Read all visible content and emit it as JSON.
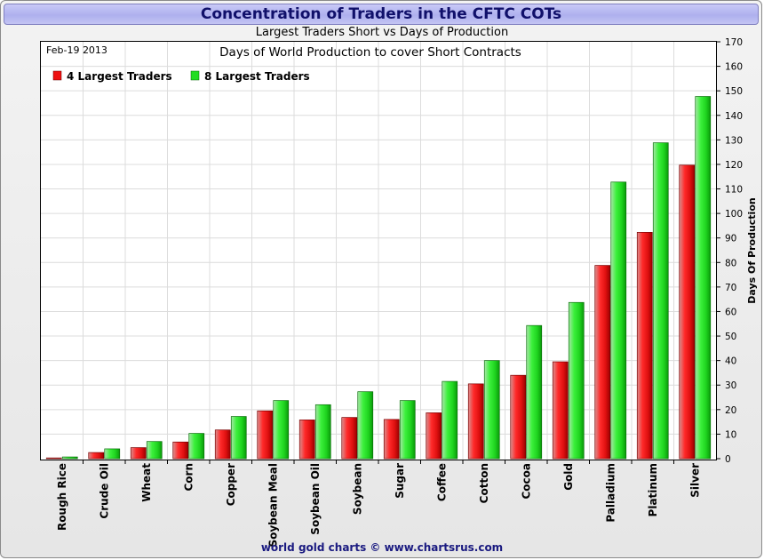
{
  "header": {
    "title": "Concentration of Traders in the CFTC COTs",
    "subtitle": "Largest Traders Short vs Days of Production"
  },
  "footer": {
    "text": "world gold charts © www.chartsrus.com"
  },
  "chart_data": {
    "type": "bar",
    "title": "Days of World Production to cover Short Contracts",
    "date_label": "Feb-19  2013",
    "ylabel": "Days Of Production",
    "xlabel": "",
    "ylim": [
      0,
      170
    ],
    "yticks": [
      0,
      10,
      20,
      30,
      40,
      50,
      60,
      70,
      80,
      90,
      100,
      110,
      120,
      130,
      140,
      150,
      160,
      170
    ],
    "grid": true,
    "legend_position": "top-left",
    "y_axis_side": "right",
    "categories": [
      "Rough Rice",
      "Crude Oil",
      "Wheat",
      "Corn",
      "Copper",
      "Soybean Meal",
      "Soybean Oil",
      "Soybean",
      "Sugar",
      "Coffee",
      "Cotton",
      "Cocoa",
      "Gold",
      "Palladium",
      "Platinum",
      "Silver"
    ],
    "series": [
      {
        "name": "4 Largest Traders",
        "color": "#ee1111",
        "values": [
          0.3,
          2.5,
          4.5,
          6.8,
          11.7,
          19.5,
          15.8,
          16.8,
          16.0,
          18.7,
          30.5,
          34.0,
          39.5,
          78.8,
          92.3,
          119.7
        ]
      },
      {
        "name": "8 Largest Traders",
        "color": "#22dd22",
        "values": [
          0.7,
          4.0,
          7.0,
          10.3,
          17.2,
          23.7,
          22.0,
          27.3,
          23.7,
          31.5,
          40.0,
          54.3,
          63.7,
          112.8,
          128.8,
          147.7
        ]
      }
    ]
  }
}
